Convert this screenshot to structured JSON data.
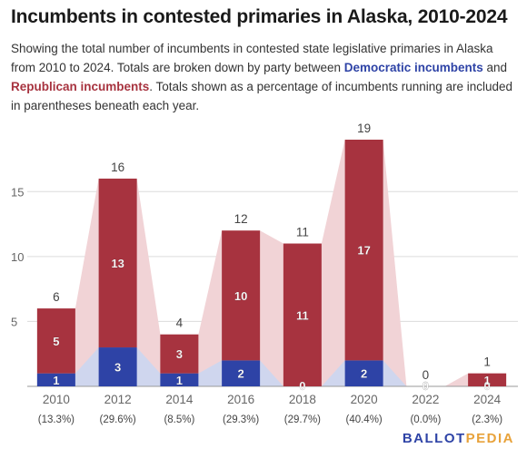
{
  "title": "Incumbents in contested primaries in Alaska, 2010-2024",
  "subtitle": {
    "part1": "Showing the total number of incumbents in contested state legislative primaries in Alaska from 2010 to 2024. Totals are broken down by party between ",
    "dem_label": "Democratic incumbents",
    "part2": " and ",
    "rep_label": "Republican incumbents",
    "part3": ". Totals shown as a percentage of incumbents running are included in parentheses beneath each year."
  },
  "branding": {
    "part1": "BALLOT",
    "part2": "PEDIA"
  },
  "colors": {
    "democratic": "#2e43a6",
    "republican": "#a7333f",
    "dem_area": "#cfd6ee",
    "rep_area": "#f1d3d6",
    "grid": "#dcdcdc",
    "axis_text": "#666666"
  },
  "chart_data": {
    "type": "bar",
    "stacked": true,
    "categories": [
      "2010",
      "2012",
      "2014",
      "2016",
      "2018",
      "2020",
      "2022",
      "2024"
    ],
    "percentages": [
      "(13.3%)",
      "(29.6%)",
      "(8.5%)",
      "(29.3%)",
      "(29.7%)",
      "(40.4%)",
      "(0.0%)",
      "(2.3%)"
    ],
    "series": [
      {
        "name": "Democratic incumbents",
        "values": [
          1,
          3,
          1,
          2,
          0,
          2,
          0,
          0
        ]
      },
      {
        "name": "Republican incumbents",
        "values": [
          5,
          13,
          3,
          10,
          11,
          17,
          0,
          1
        ]
      }
    ],
    "totals": [
      6,
      16,
      4,
      12,
      11,
      19,
      0,
      1
    ],
    "ylim": [
      0,
      19
    ],
    "yticks": [
      5,
      10,
      15
    ],
    "grid": true,
    "background_area": true
  }
}
